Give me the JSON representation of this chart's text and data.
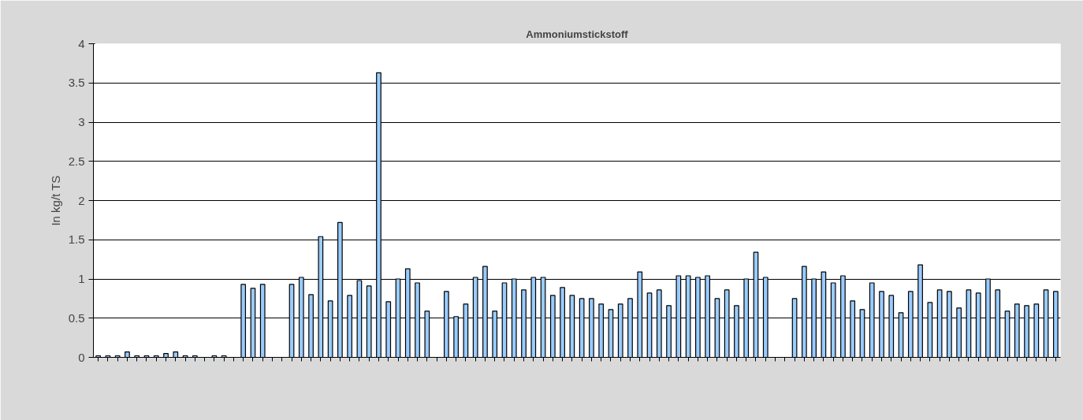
{
  "chart_data": {
    "type": "bar",
    "title": "Ammoniumstickstoff",
    "ylabel": "In kg/t TS",
    "categories": [
      null,
      null,
      null,
      null,
      null,
      null,
      null,
      null,
      null,
      null,
      null,
      null,
      null,
      null,
      null,
      null,
      null,
      null,
      null,
      null,
      null,
      null,
      null,
      null,
      null,
      null,
      null,
      null,
      null,
      null,
      null,
      null,
      null,
      null,
      null,
      null,
      null,
      null,
      null,
      null,
      null,
      null,
      null,
      null,
      null,
      null,
      null,
      null,
      null,
      null,
      null,
      null,
      null,
      null,
      null,
      null,
      null,
      null,
      null,
      null,
      null,
      null,
      null,
      null,
      null,
      null,
      null,
      null,
      null,
      null,
      null,
      null,
      null,
      null,
      null,
      null,
      null,
      null,
      null,
      null,
      null,
      null,
      null,
      null,
      null,
      null,
      null,
      null,
      null,
      null,
      null,
      null,
      null,
      null,
      null,
      null,
      null,
      null,
      null,
      null
    ],
    "values": [
      0.02,
      0.02,
      0.02,
      0.07,
      0.02,
      0.02,
      0.02,
      0.05,
      0.07,
      0.02,
      0.02,
      null,
      0.02,
      0.02,
      null,
      0.93,
      0.88,
      0.93,
      null,
      null,
      0.93,
      1.02,
      0.8,
      1.54,
      0.72,
      1.72,
      0.79,
      0.98,
      0.91,
      3.63,
      0.71,
      1.0,
      1.13,
      0.95,
      0.59,
      null,
      0.84,
      0.52,
      0.68,
      1.02,
      1.16,
      0.59,
      0.95,
      1.0,
      0.86,
      1.02,
      1.02,
      0.79,
      0.89,
      0.79,
      0.75,
      0.75,
      0.68,
      0.61,
      0.68,
      0.75,
      1.09,
      0.82,
      0.86,
      0.66,
      1.04,
      1.04,
      1.02,
      1.04,
      0.75,
      0.86,
      0.66,
      1.0,
      1.34,
      1.02,
      null,
      null,
      0.75,
      1.16,
      1.0,
      1.09,
      0.95,
      1.04,
      0.72,
      0.61,
      0.95,
      0.84,
      0.79,
      0.57,
      0.84,
      1.18,
      0.7,
      0.86,
      0.84,
      0.63,
      0.86,
      0.82,
      1.0,
      0.86,
      0.59,
      0.68,
      0.66,
      0.68,
      0.86,
      0.84
    ],
    "color": "#99ccff",
    "ylim": [
      0,
      4
    ],
    "yticks": [
      0,
      0.5,
      1,
      1.5,
      2,
      2.5,
      3,
      3.5,
      4
    ],
    "grid": "y"
  }
}
